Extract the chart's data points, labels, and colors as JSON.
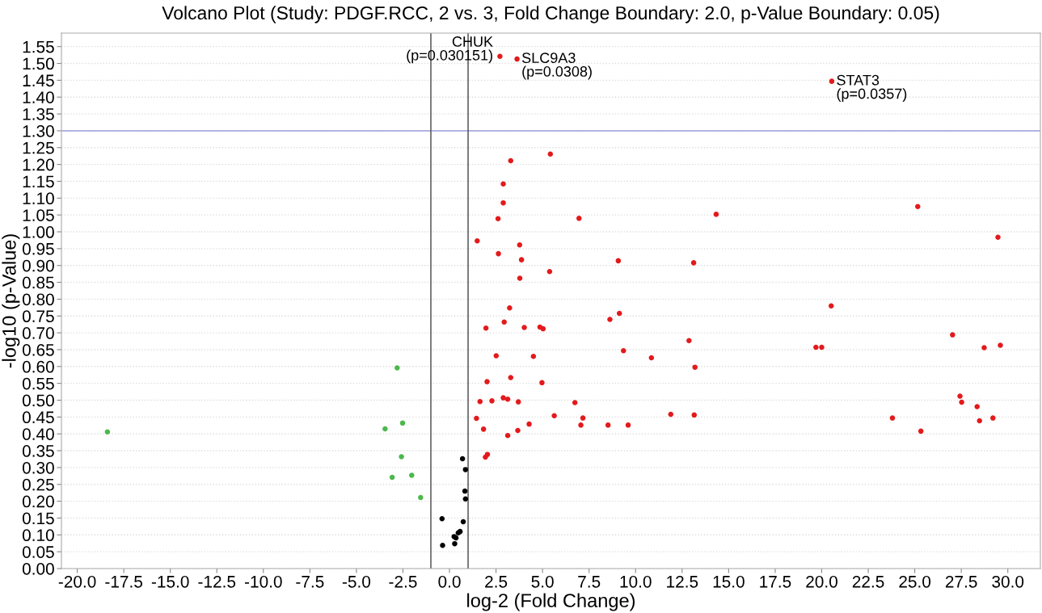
{
  "chart_data": {
    "type": "scatter",
    "title": "Volcano Plot (Study: PDGF.RCC, 2 vs. 3, Fold Change Boundary: 2.0, p-Value Boundary: 0.05)",
    "xlabel": "log-2 (Fold Change)",
    "ylabel": "-log10 (p-Value)",
    "xlim": [
      -20.85,
      31.75
    ],
    "ylim": [
      0,
      1.59
    ],
    "xticks": [
      {
        "value": -20,
        "label": "-20.0"
      },
      {
        "value": -17.5,
        "label": "-17.5"
      },
      {
        "value": -15,
        "label": "-15.0"
      },
      {
        "value": -12.5,
        "label": "-12.5"
      },
      {
        "value": -10,
        "label": "-10.0"
      },
      {
        "value": -7.5,
        "label": "-7.5"
      },
      {
        "value": -5,
        "label": "-5.0"
      },
      {
        "value": -2.5,
        "label": "-2.5"
      },
      {
        "value": 0,
        "label": "0.0"
      },
      {
        "value": 2.5,
        "label": "2.5"
      },
      {
        "value": 5,
        "label": "5.0"
      },
      {
        "value": 7.5,
        "label": "7.5"
      },
      {
        "value": 10,
        "label": "10.0"
      },
      {
        "value": 12.5,
        "label": "12.5"
      },
      {
        "value": 15,
        "label": "15.0"
      },
      {
        "value": 17.5,
        "label": "17.5"
      },
      {
        "value": 20,
        "label": "20.0"
      },
      {
        "value": 22.5,
        "label": "22.5"
      },
      {
        "value": 25,
        "label": "25.0"
      },
      {
        "value": 27.5,
        "label": "27.5"
      },
      {
        "value": 30,
        "label": "30.0"
      }
    ],
    "yticks": [
      {
        "value": 0,
        "label": "0.00"
      },
      {
        "value": 0.05,
        "label": "0.05"
      },
      {
        "value": 0.1,
        "label": "0.10"
      },
      {
        "value": 0.15,
        "label": "0.15"
      },
      {
        "value": 0.2,
        "label": "0.20"
      },
      {
        "value": 0.25,
        "label": "0.25"
      },
      {
        "value": 0.3,
        "label": "0.30"
      },
      {
        "value": 0.35,
        "label": "0.35"
      },
      {
        "value": 0.4,
        "label": "0.40"
      },
      {
        "value": 0.45,
        "label": "0.45"
      },
      {
        "value": 0.5,
        "label": "0.50"
      },
      {
        "value": 0.55,
        "label": "0.55"
      },
      {
        "value": 0.6,
        "label": "0.60"
      },
      {
        "value": 0.65,
        "label": "0.65"
      },
      {
        "value": 0.7,
        "label": "0.70"
      },
      {
        "value": 0.75,
        "label": "0.75"
      },
      {
        "value": 0.8,
        "label": "0.80"
      },
      {
        "value": 0.85,
        "label": "0.85"
      },
      {
        "value": 0.9,
        "label": "0.90"
      },
      {
        "value": 0.95,
        "label": "0.95"
      },
      {
        "value": 1.0,
        "label": "1.00"
      },
      {
        "value": 1.05,
        "label": "1.05"
      },
      {
        "value": 1.1,
        "label": "1.10"
      },
      {
        "value": 1.15,
        "label": "1.15"
      },
      {
        "value": 1.2,
        "label": "1.20"
      },
      {
        "value": 1.25,
        "label": "1.25"
      },
      {
        "value": 1.3,
        "label": "1.30"
      },
      {
        "value": 1.35,
        "label": "1.35"
      },
      {
        "value": 1.4,
        "label": "1.40"
      },
      {
        "value": 1.45,
        "label": "1.45"
      },
      {
        "value": 1.5,
        "label": "1.50"
      },
      {
        "value": 1.55,
        "label": "1.55"
      }
    ],
    "grid": "y",
    "marker": "circle",
    "series": [
      {
        "color": "#4cb84c",
        "x": [
          -18.38,
          -2.81,
          -2.52,
          -3.46,
          -2.58,
          -3.08,
          -2.03,
          -1.55
        ],
        "values": [
          0.406,
          0.596,
          0.432,
          0.415,
          0.332,
          0.271,
          0.277,
          0.211
        ]
      },
      {
        "color": "#000000",
        "x": [
          0.7,
          0.86,
          0.83,
          0.86,
          -0.4,
          0.74,
          0.57,
          0.47,
          0.25,
          0.35,
          0.28,
          -0.37
        ],
        "values": [
          0.326,
          0.294,
          0.23,
          0.207,
          0.148,
          0.139,
          0.11,
          0.106,
          0.095,
          0.091,
          0.074,
          0.069
        ]
      },
      {
        "color": "#e31a1c",
        "x": [
          2.71,
          3.63,
          20.54,
          5.42,
          3.29,
          2.89,
          2.89,
          2.61,
          6.96,
          1.49,
          3.77,
          2.63,
          3.87,
          5.38,
          3.78,
          3.23,
          2.94,
          1.96,
          4.02,
          4.86,
          5.03,
          2.51,
          4.51,
          3.29,
          2.02,
          4.97,
          1.64,
          2.28,
          2.89,
          3.13,
          3.7,
          6.74,
          1.45,
          5.63,
          7.17,
          7.06,
          4.28,
          1.83,
          3.67,
          3.13,
          2.04,
          1.93,
          14.33,
          9.07,
          13.12,
          20.51,
          9.13,
          8.62,
          12.87,
          19.69,
          20.0,
          9.35,
          10.85,
          13.19,
          11.89,
          13.15,
          8.52,
          9.6,
          25.16,
          29.47,
          27.03,
          28.73,
          29.6,
          27.43,
          27.52,
          28.35,
          23.8,
          29.2,
          28.48,
          25.33
        ],
        "values": [
          1.521,
          1.513,
          1.447,
          1.231,
          1.211,
          1.142,
          1.086,
          1.039,
          1.04,
          0.973,
          0.961,
          0.935,
          0.917,
          0.882,
          0.862,
          0.774,
          0.732,
          0.714,
          0.716,
          0.717,
          0.712,
          0.632,
          0.63,
          0.567,
          0.555,
          0.552,
          0.496,
          0.498,
          0.507,
          0.503,
          0.495,
          0.493,
          0.446,
          0.454,
          0.447,
          0.426,
          0.429,
          0.414,
          0.41,
          0.395,
          0.339,
          0.331,
          1.052,
          0.914,
          0.908,
          0.78,
          0.758,
          0.74,
          0.677,
          0.657,
          0.657,
          0.647,
          0.626,
          0.598,
          0.458,
          0.456,
          0.426,
          0.426,
          1.075,
          0.984,
          0.694,
          0.656,
          0.663,
          0.512,
          0.494,
          0.481,
          0.447,
          0.447,
          0.439,
          0.408
        ]
      }
    ],
    "ref_lines": [
      {
        "axis": "y",
        "value": 1.3,
        "color": "#9c9cdc"
      },
      {
        "axis": "x",
        "value": -1,
        "color": "#555555"
      },
      {
        "axis": "x",
        "value": 1,
        "color": "#555555"
      }
    ],
    "annotations": [
      {
        "text": "CHUK\n(p=0.030151)",
        "x": 2.71,
        "y": 1.521
      },
      {
        "text": "SLC9A3\n(p=0.0308)",
        "x": 3.63,
        "y": 1.513
      },
      {
        "text": "STAT3\n(p=0.0357)",
        "x": 20.54,
        "y": 1.447
      }
    ]
  }
}
